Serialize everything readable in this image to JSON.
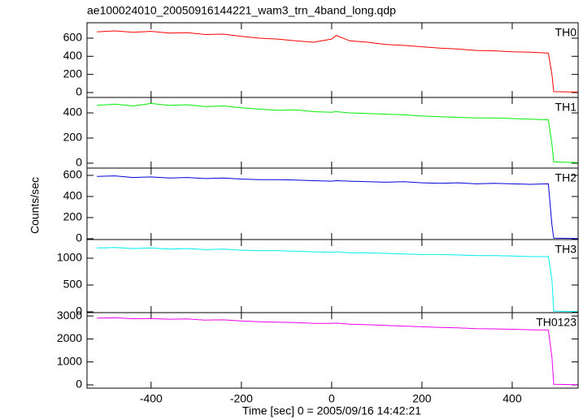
{
  "title": "ae100024010_20050916144221_wam3_trn_4band_long.qdp",
  "x_label": "Time [sec] 0 = 2005/09/16 14:42:21",
  "y_label": "Counts/sec",
  "chart_data": [
    {
      "type": "line",
      "x": [
        -520,
        -480,
        -440,
        -400,
        -360,
        -320,
        -280,
        -240,
        -200,
        -160,
        -120,
        -80,
        -40,
        0,
        10,
        40,
        80,
        120,
        160,
        200,
        240,
        280,
        320,
        360,
        400,
        440,
        480,
        488,
        492,
        545
      ],
      "xlim": [
        -542,
        546
      ],
      "xticks": [
        -400,
        -200,
        0,
        200,
        400
      ],
      "ylim": [
        -54,
        770
      ],
      "yticks": [
        0,
        200,
        400,
        600
      ],
      "series": [
        {
          "name": "TH0",
          "color": "#ff0000",
          "values": [
            670,
            680,
            665,
            675,
            655,
            660,
            640,
            645,
            620,
            600,
            590,
            570,
            555,
            590,
            630,
            570,
            555,
            530,
            520,
            505,
            490,
            480,
            465,
            460,
            450,
            445,
            435,
            200,
            10,
            5
          ]
        }
      ]
    },
    {
      "type": "line",
      "x": [
        -520,
        -480,
        -440,
        -400,
        -360,
        -320,
        -280,
        -240,
        -200,
        -160,
        -120,
        -80,
        -40,
        0,
        10,
        40,
        80,
        120,
        160,
        200,
        240,
        280,
        320,
        360,
        400,
        440,
        480,
        488,
        492,
        545
      ],
      "xlim": [
        -542,
        546
      ],
      "xticks": [
        -400,
        -200,
        0,
        200,
        400
      ],
      "ylim": [
        -39,
        523
      ],
      "yticks": [
        0,
        200,
        400
      ],
      "series": [
        {
          "name": "TH1",
          "color": "#00ee00",
          "values": [
            460,
            470,
            455,
            475,
            460,
            465,
            450,
            455,
            440,
            430,
            420,
            425,
            410,
            405,
            410,
            400,
            395,
            390,
            385,
            375,
            370,
            365,
            360,
            360,
            355,
            350,
            345,
            150,
            10,
            5
          ]
        }
      ]
    },
    {
      "type": "line",
      "x": [
        -520,
        -480,
        -440,
        -400,
        -360,
        -320,
        -280,
        -240,
        -200,
        -160,
        -120,
        -80,
        -40,
        0,
        10,
        40,
        80,
        120,
        160,
        200,
        240,
        280,
        320,
        360,
        400,
        440,
        480,
        488,
        492,
        545
      ],
      "xlim": [
        -542,
        546
      ],
      "xticks": [
        -400,
        -200,
        0,
        200,
        400
      ],
      "ylim": [
        -8,
        669
      ],
      "yticks": [
        0,
        200,
        400,
        600
      ],
      "series": [
        {
          "name": "TH2",
          "color": "#0000dd",
          "values": [
            590,
            595,
            580,
            585,
            575,
            580,
            570,
            575,
            565,
            560,
            560,
            555,
            550,
            545,
            550,
            545,
            540,
            535,
            540,
            530,
            525,
            530,
            520,
            525,
            520,
            515,
            520,
            130,
            5,
            2
          ]
        }
      ]
    },
    {
      "type": "line",
      "x": [
        -520,
        -480,
        -440,
        -400,
        -360,
        -320,
        -280,
        -240,
        -200,
        -160,
        -120,
        -80,
        -40,
        0,
        10,
        40,
        80,
        120,
        160,
        200,
        240,
        280,
        320,
        360,
        400,
        440,
        480,
        488,
        492,
        545
      ],
      "xlim": [
        -542,
        546
      ],
      "xticks": [
        -400,
        -200,
        0,
        200,
        400
      ],
      "ylim": [
        -15,
        1348
      ],
      "yticks": [
        0,
        500,
        1000
      ],
      "series": [
        {
          "name": "TH3",
          "color": "#00eeee",
          "values": [
            1190,
            1200,
            1180,
            1190,
            1170,
            1180,
            1160,
            1170,
            1150,
            1140,
            1140,
            1130,
            1120,
            1110,
            1120,
            1100,
            1100,
            1090,
            1080,
            1070,
            1070,
            1060,
            1050,
            1050,
            1040,
            1030,
            1030,
            600,
            10,
            5
          ]
        }
      ]
    },
    {
      "type": "line",
      "x": [
        -520,
        -480,
        -440,
        -400,
        -360,
        -320,
        -280,
        -240,
        -200,
        -160,
        -120,
        -80,
        -40,
        0,
        10,
        40,
        80,
        120,
        160,
        200,
        240,
        280,
        320,
        360,
        400,
        440,
        480,
        488,
        492,
        545
      ],
      "xlim": [
        -542,
        546
      ],
      "xticks": [
        -400,
        -200,
        0,
        200,
        400
      ],
      "ylim": [
        -141,
        3145
      ],
      "yticks": [
        0,
        1000,
        2000,
        3000
      ],
      "series": [
        {
          "name": "TH0123",
          "color": "#ee00ee",
          "values": [
            2910,
            2920,
            2880,
            2890,
            2860,
            2870,
            2820,
            2830,
            2780,
            2750,
            2730,
            2710,
            2680,
            2680,
            2690,
            2640,
            2620,
            2590,
            2560,
            2530,
            2500,
            2480,
            2450,
            2440,
            2420,
            2400,
            2390,
            1200,
            30,
            10
          ]
        }
      ]
    }
  ]
}
